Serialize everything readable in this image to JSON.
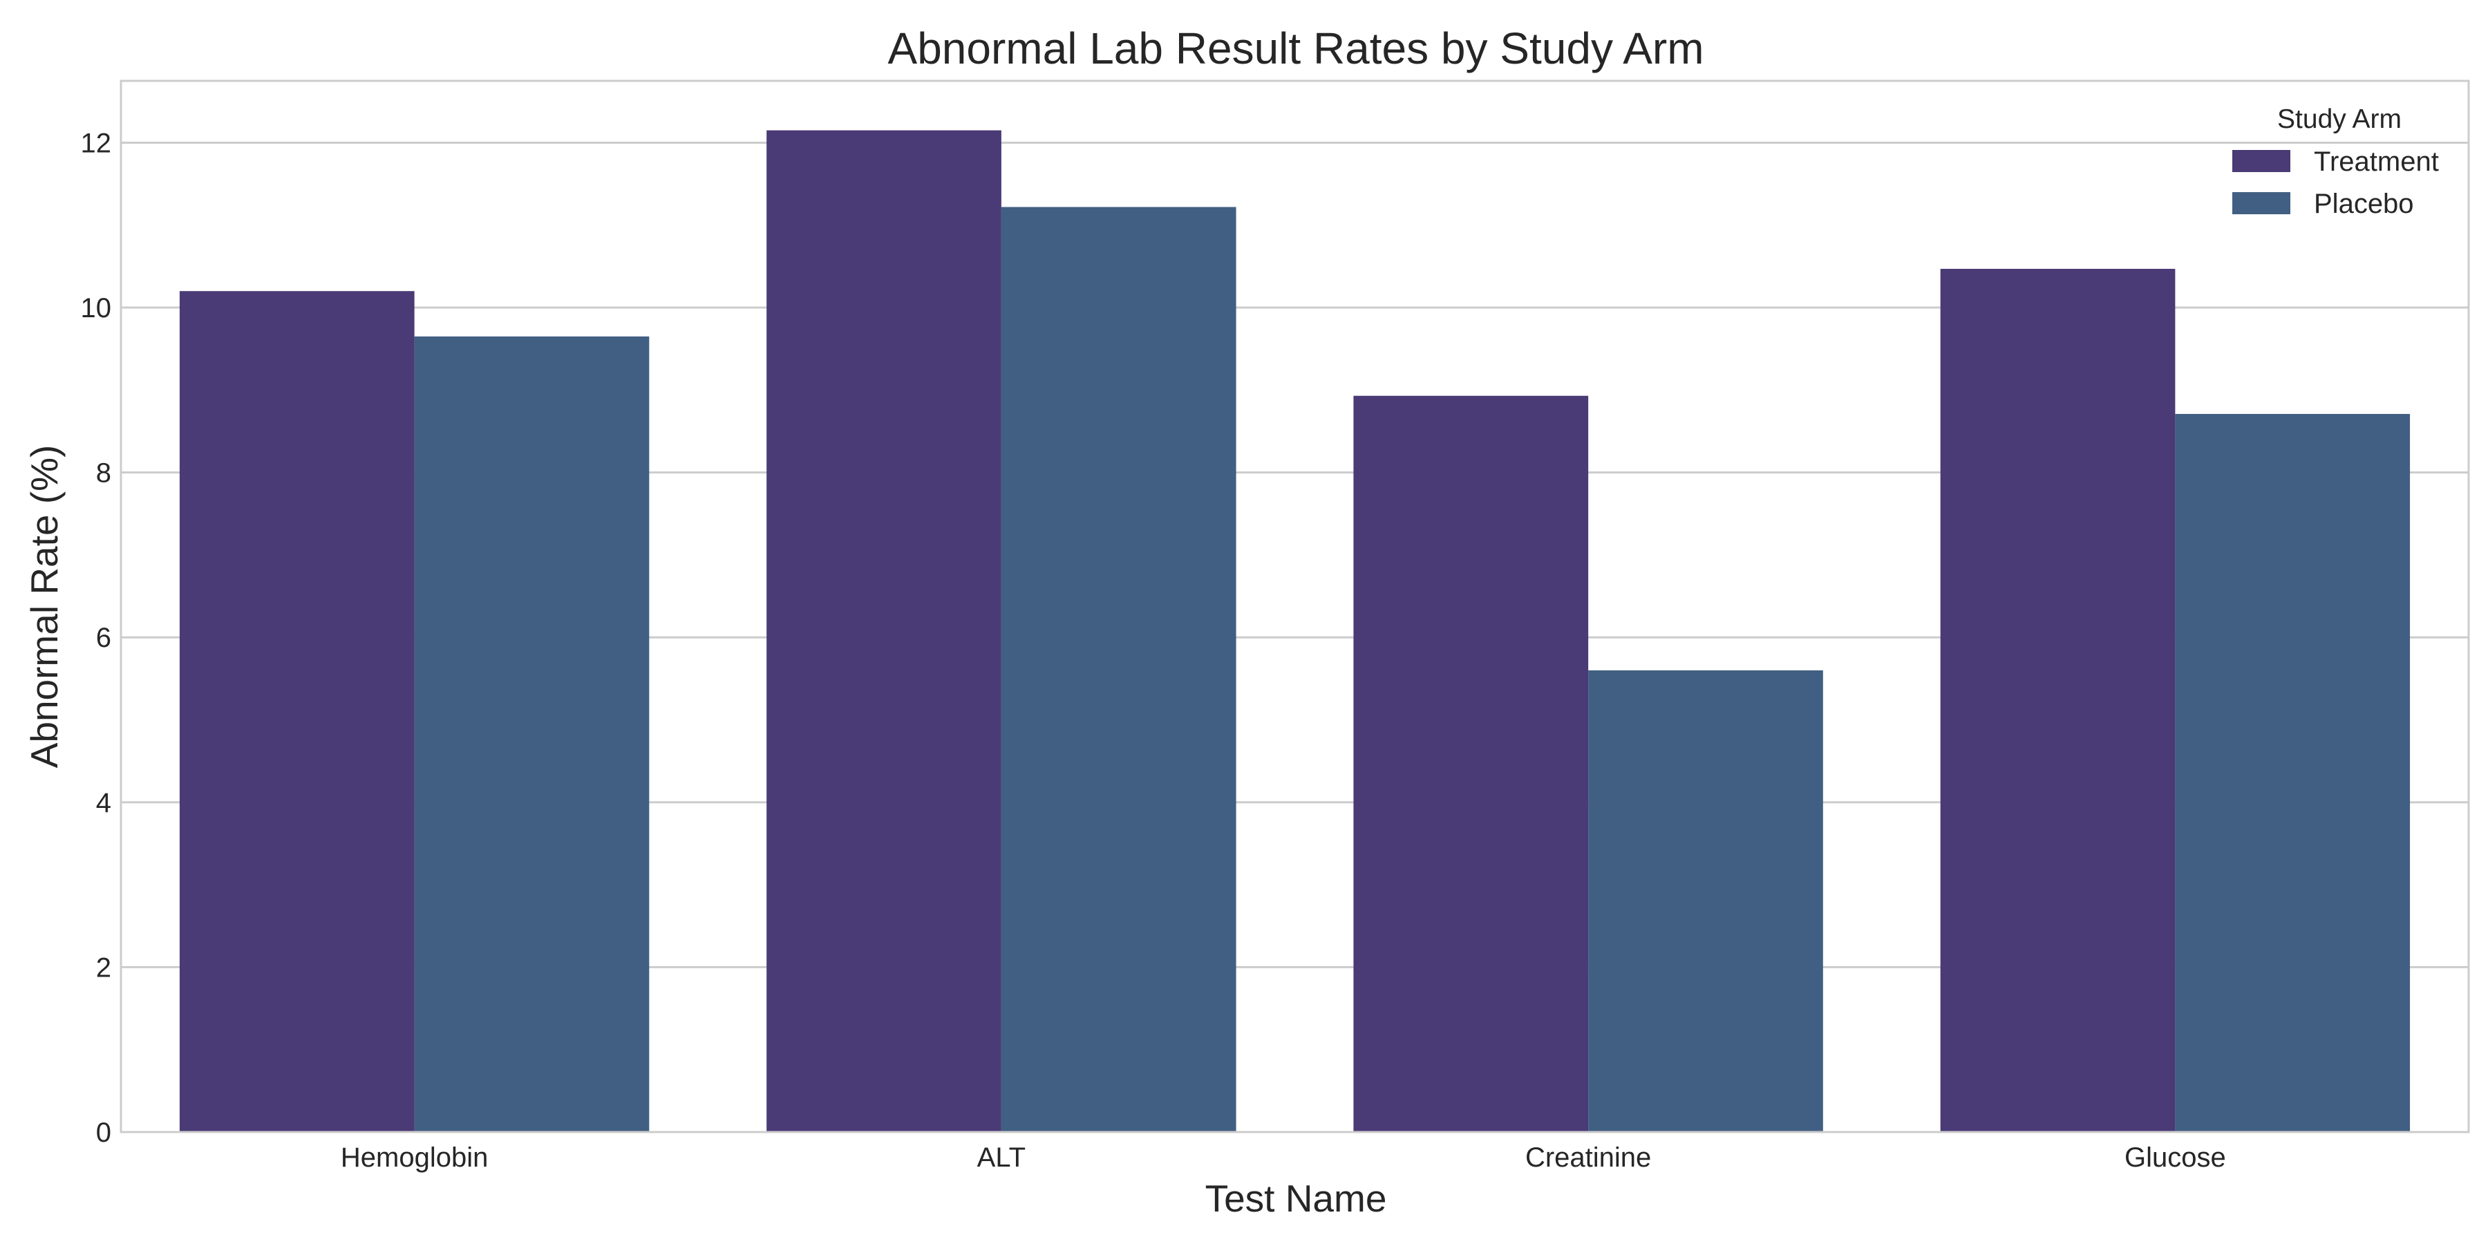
{
  "chart_data": {
    "type": "bar",
    "title": "Abnormal Lab Result Rates by Study Arm",
    "xlabel": "Test Name",
    "ylabel": "Abnormal Rate (%)",
    "categories": [
      "Hemoglobin",
      "ALT",
      "Creatinine",
      "Glucose"
    ],
    "series": [
      {
        "name": "Treatment",
        "color": "#4a3a75",
        "values": [
          10.2,
          12.15,
          8.93,
          10.47
        ]
      },
      {
        "name": "Placebo",
        "color": "#415f82",
        "values": [
          9.65,
          11.22,
          5.6,
          8.71
        ]
      }
    ],
    "ylim": [
      0,
      12.75
    ],
    "yticks": [
      0,
      2,
      4,
      6,
      8,
      10,
      12
    ],
    "grid": "horizontal",
    "legend": {
      "title": "Study Arm",
      "position": "top-right"
    }
  }
}
